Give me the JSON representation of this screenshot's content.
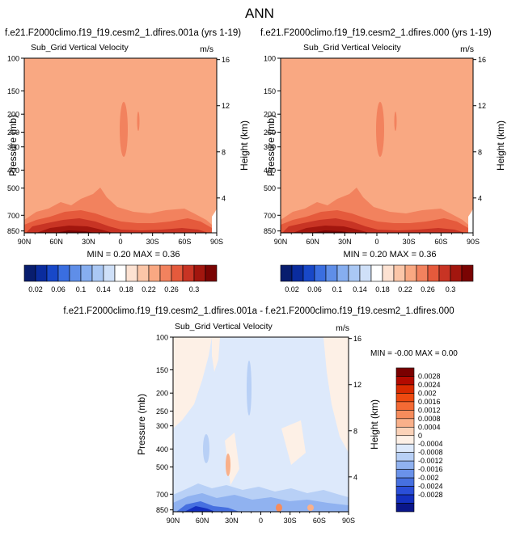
{
  "figure_title": "ANN",
  "panel_a": {
    "case_title": "f.e21.F2000climo.f19_f19.cesm2_1.dfires.001a (yrs 1-19)",
    "variable": "Sub_Grid Vertical Velocity",
    "units": "m/s",
    "ylabel": "Pressure (mb)",
    "ylabel_right": "Height (km)",
    "stats": "MIN =  0.20  MAX =  0.36"
  },
  "panel_b": {
    "case_title": "f.e21.F2000climo.f19_f19.cesm2_1.dfires.000 (yrs 1-19)",
    "variable": "Sub_Grid Vertical Velocity",
    "units": "m/s",
    "ylabel": "Pressure (mb)",
    "ylabel_right": "Height (km)",
    "stats": "MIN =  0.20  MAX =  0.36"
  },
  "panel_diff": {
    "case_title": "f.e21.F2000climo.f19_f19.cesm2_1.dfires.001a - f.e21.F2000climo.f19_f19.cesm2_1.dfires.000",
    "variable": "Sub_Grid Vertical Velocity",
    "units": "m/s",
    "ylabel": "Pressure (mb)",
    "ylabel_right": "Height (km)",
    "stats": "MIN = -0.00  MAX =  0.00"
  },
  "chart_data": [
    {
      "type": "heatmap",
      "title": "Sub_Grid Vertical Velocity",
      "xlabel": "",
      "ylabel": "Pressure (mb)",
      "x_ticks": [
        "90N",
        "60N",
        "30N",
        "0",
        "30S",
        "60S",
        "90S"
      ],
      "y_ticks": [
        "100",
        "150",
        "200",
        "250",
        "300",
        "400",
        "500",
        "700",
        "850"
      ],
      "y_ticks_right": [
        "16",
        "12",
        "8",
        "4"
      ],
      "min": 0.2,
      "max": 0.36
    },
    {
      "type": "heatmap",
      "title": "Sub_Grid Vertical Velocity",
      "xlabel": "",
      "ylabel": "Pressure (mb)",
      "x_ticks": [
        "90N",
        "60N",
        "30N",
        "0",
        "30S",
        "60S",
        "90S"
      ],
      "y_ticks": [
        "100",
        "150",
        "200",
        "250",
        "300",
        "400",
        "500",
        "700",
        "850"
      ],
      "y_ticks_right": [
        "16",
        "12",
        "8",
        "4"
      ],
      "min": 0.2,
      "max": 0.36
    },
    {
      "type": "heatmap",
      "title": "Sub_Grid Vertical Velocity",
      "xlabel": "",
      "ylabel": "Pressure (mb)",
      "x_ticks": [
        "90N",
        "60N",
        "30N",
        "0",
        "30S",
        "60S",
        "90S"
      ],
      "y_ticks": [
        "100",
        "150",
        "200",
        "250",
        "300",
        "400",
        "500",
        "700",
        "850"
      ],
      "y_ticks_right": [
        "16",
        "12",
        "8",
        "4"
      ],
      "min": -0.0,
      "max": 0.0
    }
  ],
  "colorbar_main": {
    "labels": [
      "0.02",
      "0.06",
      "0.1",
      "0.14",
      "0.18",
      "0.22",
      "0.26",
      "0.3"
    ],
    "colors": [
      "#081d6e",
      "#0a2c9e",
      "#1848c8",
      "#3a6ee0",
      "#5f8ee8",
      "#86aef0",
      "#aac8f4",
      "#cfe0f8",
      "#ffffff",
      "#fde2d2",
      "#fbc6a8",
      "#f9a882",
      "#f2825e",
      "#e55a3c",
      "#c83424",
      "#a2160e",
      "#7a0403"
    ]
  },
  "colorbar_diff": {
    "labels": [
      "0.0028",
      "0.0024",
      "0.002",
      "0.0016",
      "0.0012",
      "0.0008",
      "0.0004",
      "0",
      "-0.0004",
      "-0.0008",
      "-0.0012",
      "-0.0016",
      "-0.002",
      "-0.0024",
      "-0.0028"
    ],
    "colors": [
      "#7a0000",
      "#b30a00",
      "#d92a00",
      "#ee4a10",
      "#f46a34",
      "#f68c5c",
      "#f9b08a",
      "#fbd2b8",
      "#fdf0e6",
      "#dde9fb",
      "#b8d0f6",
      "#90b2f0",
      "#6a92ea",
      "#4670e0",
      "#2a4ed8",
      "#1430c0",
      "#0a168a"
    ]
  }
}
